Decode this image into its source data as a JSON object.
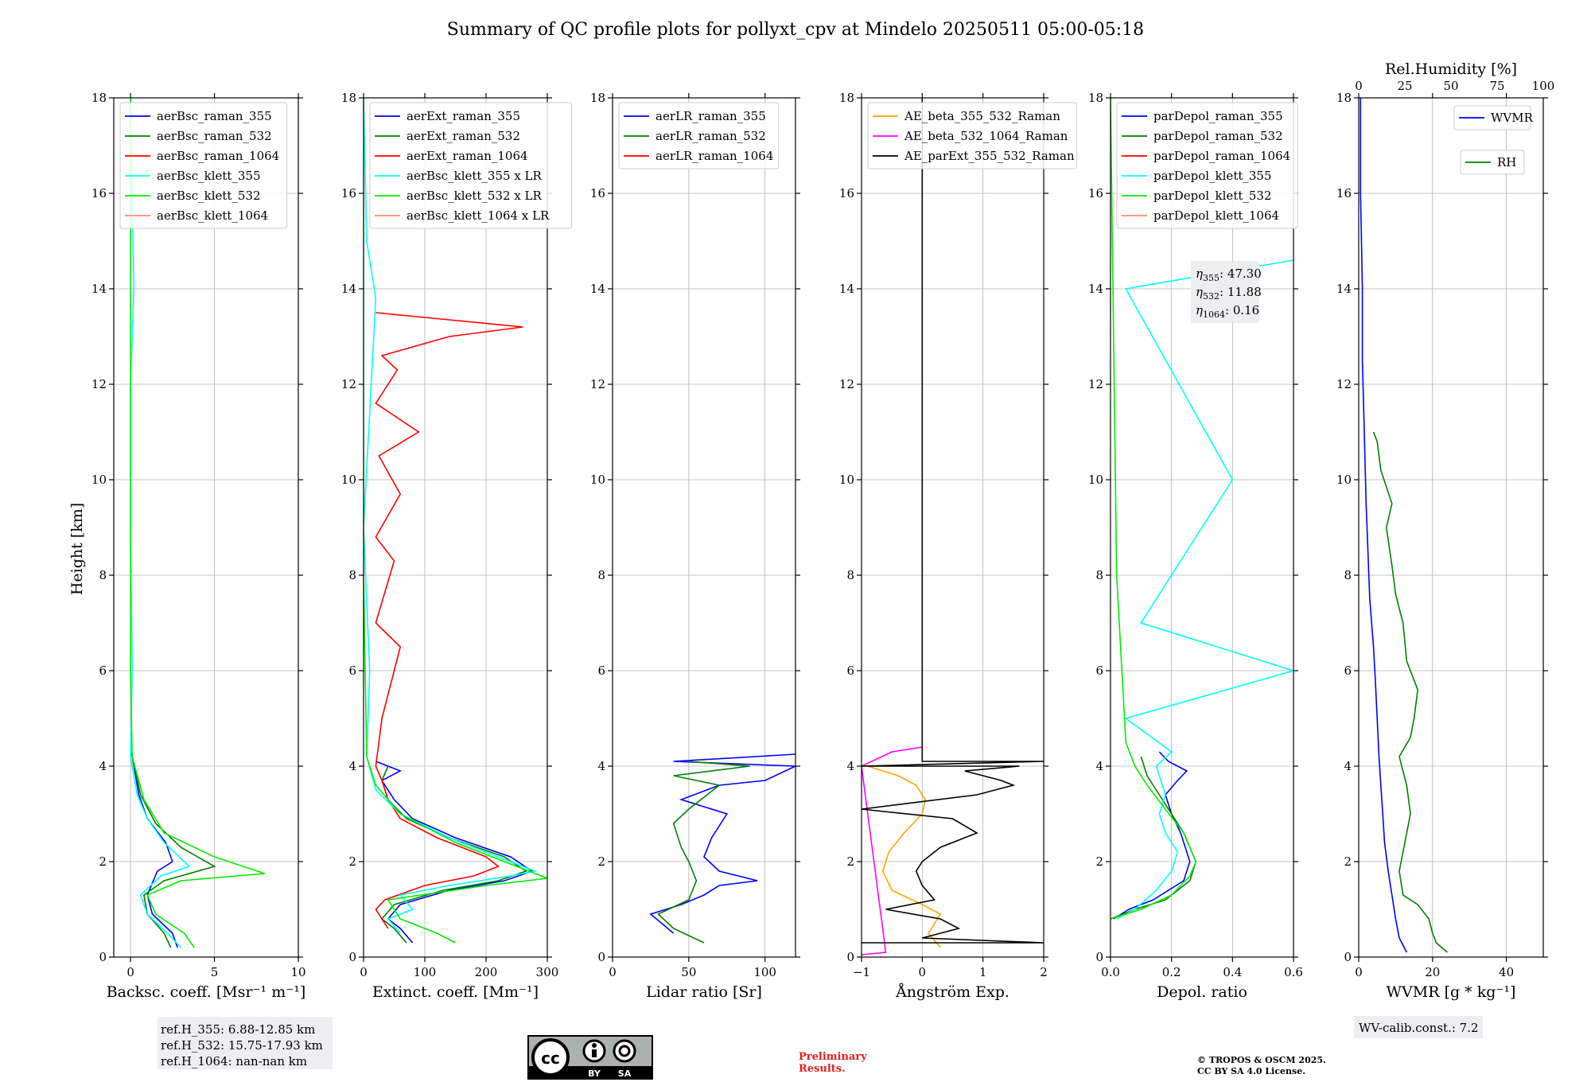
{
  "title": "Summary of QC profile plots for pollyxt_cpv at Mindelo 20250511 05:00-05:18",
  "shared_ylabel": "Height [km]",
  "panels": [
    {
      "xlabel": "Backsc. coeff. [Msr⁻¹ m⁻¹]",
      "xlim": [
        -1,
        10
      ],
      "xticks": [
        0,
        5,
        10
      ],
      "ylim": [
        0,
        18
      ],
      "yticks": [
        0,
        2,
        4,
        6,
        8,
        10,
        12,
        14,
        16,
        18
      ],
      "legend": [
        "aerBsc_raman_355",
        "aerBsc_raman_532",
        "aerBsc_raman_1064",
        "aerBsc_klett_355",
        "aerBsc_klett_532",
        "aerBsc_klett_1064"
      ],
      "colors": [
        "#0000ff",
        "#008000",
        "#ff0000",
        "#00ffff",
        "#00ee00",
        "#ff8c69"
      ]
    },
    {
      "xlabel": "Extinct. coeff. [Mm⁻¹]",
      "xlim": [
        0,
        300
      ],
      "xticks": [
        0,
        100,
        200,
        300
      ],
      "ylim": [
        0,
        18
      ],
      "yticks": [
        0,
        2,
        4,
        6,
        8,
        10,
        12,
        14,
        16,
        18
      ],
      "legend": [
        "aerExt_raman_355",
        "aerExt_raman_532",
        "aerExt_raman_1064",
        "aerBsc_klett_355 x LR",
        "aerBsc_klett_532 x LR",
        "aerBsc_klett_1064 x LR"
      ],
      "colors": [
        "#0000ff",
        "#008000",
        "#ff0000",
        "#00ffff",
        "#00ee00",
        "#ff8c69"
      ]
    },
    {
      "xlabel": "Lidar ratio [Sr]",
      "xlim": [
        0,
        120
      ],
      "xticks": [
        0,
        50,
        100
      ],
      "ylim": [
        0,
        18
      ],
      "yticks": [
        0,
        2,
        4,
        6,
        8,
        10,
        12,
        14,
        16,
        18
      ],
      "legend": [
        "aerLR_raman_355",
        "aerLR_raman_532",
        "aerLR_raman_1064"
      ],
      "colors": [
        "#0000ff",
        "#008000",
        "#ff0000"
      ]
    },
    {
      "xlabel": "Ångström Exp.",
      "xlim": [
        -1,
        2
      ],
      "xticks": [
        -1,
        0,
        1,
        2
      ],
      "ylim": [
        0,
        18
      ],
      "yticks": [
        0,
        2,
        4,
        6,
        8,
        10,
        12,
        14,
        16,
        18
      ],
      "legend": [
        "AE_beta_355_532_Raman",
        "AE_beta_532_1064_Raman",
        "AE_parExt_355_532_Raman"
      ],
      "colors": [
        "#ffa500",
        "#ff00ff",
        "#000000"
      ]
    },
    {
      "xlabel": "Depol. ratio",
      "xlim": [
        0,
        0.6
      ],
      "xticks": [
        0.0,
        0.2,
        0.4,
        0.6
      ],
      "ylim": [
        0,
        18
      ],
      "yticks": [
        0,
        2,
        4,
        6,
        8,
        10,
        12,
        14,
        16,
        18
      ],
      "legend": [
        "parDepol_raman_355",
        "parDepol_raman_532",
        "parDepol_raman_1064",
        "parDepol_klett_355",
        "parDepol_klett_532",
        "parDepol_klett_1064"
      ],
      "colors": [
        "#0000ff",
        "#008000",
        "#ff0000",
        "#00ffff",
        "#00ee00",
        "#ff8c69"
      ],
      "eta": [
        "47.30",
        "11.88",
        "0.16"
      ]
    },
    {
      "xlabel": "WVMR [g * kg⁻¹]",
      "xlim": [
        0,
        50
      ],
      "xticks": [
        0,
        20,
        40
      ],
      "ylim": [
        0,
        18
      ],
      "yticks": [
        0,
        2,
        4,
        6,
        8,
        10,
        12,
        14,
        16,
        18
      ],
      "top_xlabel": "Rel.Humidity [%]",
      "top_xticks": [
        0,
        25,
        50,
        75,
        100
      ],
      "legend": [
        "WVMR",
        "RH"
      ],
      "colors": [
        "#0000ff",
        "#008000"
      ]
    }
  ],
  "refh": [
    "ref.H_355: 6.88-12.85 km",
    "ref.H_532: 15.75-17.93 km",
    "ref.H_1064: nan-nan km"
  ],
  "wv_calib": "WV-calib.const.: 7.2",
  "cc_badge": {
    "by": "BY",
    "sa": "SA"
  },
  "preliminary": [
    "Preliminary",
    "Results."
  ],
  "copyright": [
    "© TROPOS & OSCM 2025.",
    "CC BY SA 4.0 License."
  ],
  "chart_data": [
    {
      "type": "line",
      "xlabel": "Backsc. coeff. [Msr⁻¹ m⁻¹]",
      "ylabel": "Height [km]",
      "xlim": [
        -1,
        10
      ],
      "ylim": [
        0,
        18
      ],
      "grid": true,
      "legend_position": "top",
      "series": [
        {
          "name": "aerBsc_raman_355",
          "x": [
            2.8,
            2.5,
            1.3,
            1.0,
            1.6,
            2.5,
            2.1,
            1.0,
            0.5,
            0.1,
            0.0
          ],
          "y": [
            0.2,
            0.5,
            0.9,
            1.3,
            1.8,
            2.0,
            2.4,
            2.9,
            3.4,
            4.2,
            4.3
          ]
        },
        {
          "name": "aerBsc_raman_532",
          "x": [
            2.4,
            2.0,
            1.0,
            0.8,
            2.0,
            5.0,
            3.0,
            1.5,
            0.6,
            0.1
          ],
          "y": [
            0.2,
            0.5,
            0.9,
            1.3,
            1.6,
            1.9,
            2.3,
            2.8,
            3.4,
            4.2
          ]
        },
        {
          "name": "aerBsc_klett_355",
          "x": [
            3.0,
            2.2,
            1.0,
            0.6,
            1.8,
            3.5,
            2.0,
            1.0,
            0.4,
            0.0,
            0.1,
            0.0,
            0.0,
            0.2,
            0.0
          ],
          "y": [
            0.2,
            0.5,
            0.9,
            1.3,
            1.7,
            1.9,
            2.4,
            2.9,
            3.4,
            4.2,
            6.0,
            9.0,
            12.0,
            14.0,
            18.0
          ]
        },
        {
          "name": "aerBsc_klett_532",
          "x": [
            3.8,
            3.2,
            1.5,
            1.0,
            3.0,
            8.0,
            5.0,
            2.0,
            0.8,
            0.1,
            0.0,
            0.0,
            0.0,
            0.0
          ],
          "y": [
            0.2,
            0.5,
            0.9,
            1.3,
            1.6,
            1.75,
            2.1,
            2.6,
            3.3,
            4.2,
            6.0,
            10.0,
            14.0,
            18.0
          ]
        }
      ]
    },
    {
      "type": "line",
      "xlabel": "Extinct. coeff. [Mm⁻¹]",
      "ylabel": "Height [km]",
      "xlim": [
        0,
        300
      ],
      "ylim": [
        0,
        18
      ],
      "grid": true,
      "legend_position": "top",
      "series": [
        {
          "name": "aerExt_raman_355",
          "x": [
            80,
            60,
            40,
            60,
            140,
            230,
            275,
            240,
            150,
            80,
            50,
            30,
            60,
            20
          ],
          "y": [
            0.3,
            0.6,
            0.8,
            1.1,
            1.4,
            1.6,
            1.8,
            2.1,
            2.5,
            2.9,
            3.3,
            3.7,
            3.9,
            4.1
          ]
        },
        {
          "name": "aerExt_raman_532",
          "x": [
            70,
            50,
            30,
            50,
            130,
            220,
            265,
            230,
            140,
            70,
            40,
            30,
            40
          ],
          "y": [
            0.3,
            0.6,
            0.8,
            1.1,
            1.4,
            1.6,
            1.8,
            2.1,
            2.5,
            2.9,
            3.3,
            3.7,
            4.0
          ]
        },
        {
          "name": "aerExt_raman_1064",
          "x": [
            40,
            30,
            20,
            35,
            100,
            180,
            220,
            200,
            120,
            60,
            40,
            30,
            20,
            30,
            60,
            20,
            50,
            20,
            60,
            25,
            90,
            20,
            55,
            30,
            140,
            260,
            100,
            20
          ],
          "y": [
            0.6,
            0.8,
            1.0,
            1.2,
            1.5,
            1.7,
            1.9,
            2.1,
            2.5,
            2.9,
            3.3,
            3.7,
            4.0,
            5.0,
            6.5,
            7.0,
            8.3,
            8.8,
            9.7,
            10.5,
            11.0,
            11.6,
            12.3,
            12.6,
            13.0,
            13.2,
            13.4,
            13.5
          ]
        },
        {
          "name": "aerBsc_klett_355 x LR",
          "x": [
            60,
            40,
            80,
            60,
            140,
            240,
            280,
            240,
            140,
            60,
            20,
            5,
            10,
            0,
            20,
            5,
            0
          ],
          "y": [
            0.5,
            0.8,
            1.0,
            1.3,
            1.5,
            1.7,
            1.8,
            2.0,
            2.5,
            3.0,
            3.5,
            4.2,
            6.0,
            9.0,
            13.8,
            15.0,
            18.0
          ]
        },
        {
          "name": "aerBsc_klett_532 x LR",
          "x": [
            150,
            120,
            60,
            40,
            200,
            300,
            250,
            150,
            60,
            20,
            5,
            0,
            0
          ],
          "y": [
            0.3,
            0.5,
            0.8,
            1.2,
            1.5,
            1.65,
            1.9,
            2.4,
            3.0,
            3.6,
            4.2,
            8.0,
            18.0
          ]
        }
      ]
    },
    {
      "type": "line",
      "xlabel": "Lidar ratio [Sr]",
      "ylabel": "Height [km]",
      "xlim": [
        0,
        120
      ],
      "ylim": [
        0,
        18
      ],
      "grid": true,
      "legend_position": "top",
      "series": [
        {
          "name": "aerLR_raman_355",
          "x": [
            40,
            25,
            45,
            60,
            70,
            95,
            70,
            60,
            65,
            75,
            45,
            70,
            100,
            120,
            40,
            120
          ],
          "y": [
            0.5,
            0.9,
            1.1,
            1.3,
            1.5,
            1.6,
            1.8,
            2.1,
            2.5,
            3.0,
            3.3,
            3.6,
            3.7,
            4.0,
            4.1,
            4.25
          ]
        },
        {
          "name": "aerLR_raman_532",
          "x": [
            60,
            40,
            30,
            50,
            55,
            50,
            45,
            40,
            50,
            70,
            40,
            90,
            50
          ],
          "y": [
            0.3,
            0.6,
            0.9,
            1.2,
            1.6,
            2.0,
            2.3,
            2.8,
            3.1,
            3.6,
            3.8,
            4.0,
            4.1
          ]
        }
      ]
    },
    {
      "type": "line",
      "xlabel": "Ångström Exp.",
      "ylabel": "Height [km]",
      "xlim": [
        -1,
        2
      ],
      "ylim": [
        0,
        18
      ],
      "grid": true,
      "legend_position": "top",
      "series": [
        {
          "name": "AE_beta_355_532_Raman",
          "x": [
            0.3,
            0.1,
            0.3,
            0.0,
            -0.5,
            -0.65,
            -0.55,
            -0.3,
            0.0,
            0.05,
            -0.1,
            -0.4,
            -0.9
          ],
          "y": [
            0.2,
            0.5,
            0.9,
            1.1,
            1.4,
            1.8,
            2.2,
            2.6,
            3.0,
            3.3,
            3.6,
            3.8,
            4.0
          ]
        },
        {
          "name": "AE_beta_532_1064_Raman",
          "x": [
            -1.0,
            -0.6,
            -1.0,
            -0.5,
            0.0
          ],
          "y": [
            0.05,
            0.1,
            4.0,
            4.3,
            4.4
          ]
        },
        {
          "name": "AE_parExt_355_532_Raman",
          "x": [
            -1.0,
            2.0,
            0.0,
            0.6,
            0.3,
            -0.6,
            0.2,
            0.0,
            -0.1,
            0.0,
            0.3,
            0.9,
            0.5,
            -1.0,
            0.9,
            1.5,
            1.3,
            0.7,
            1.6,
            -1.0,
            2.0,
            0.0,
            0.0
          ],
          "y": [
            0.3,
            0.3,
            0.4,
            0.6,
            0.8,
            1.0,
            1.2,
            1.5,
            1.8,
            2.0,
            2.3,
            2.6,
            2.9,
            3.1,
            3.4,
            3.6,
            3.7,
            3.9,
            4.0,
            4.0,
            4.1,
            4.1,
            18.0
          ]
        }
      ]
    },
    {
      "type": "line",
      "xlabel": "Depol. ratio",
      "ylabel": "Height [km]",
      "xlim": [
        0,
        0.6
      ],
      "ylim": [
        0,
        18
      ],
      "grid": true,
      "legend_position": "top-left",
      "annotation": "η355: 47.30, η532: 11.88, η1064: 0.16",
      "series": [
        {
          "name": "parDepol_raman_355",
          "x": [
            0.01,
            0.06,
            0.14,
            0.24,
            0.26,
            0.23,
            0.2,
            0.18,
            0.22,
            0.25,
            0.19,
            0.16
          ],
          "y": [
            0.8,
            1.0,
            1.2,
            1.6,
            2.0,
            2.6,
            3.0,
            3.4,
            3.7,
            3.9,
            4.1,
            4.3
          ]
        },
        {
          "name": "parDepol_raman_532",
          "x": [
            0.0,
            0.08,
            0.18,
            0.26,
            0.28,
            0.24,
            0.2,
            0.16,
            0.12,
            0.1
          ],
          "y": [
            0.8,
            1.0,
            1.2,
            1.6,
            2.0,
            2.6,
            3.0,
            3.4,
            3.8,
            4.2
          ]
        },
        {
          "name": "parDepol_klett_355",
          "x": [
            0.02,
            0.08,
            0.15,
            0.2,
            0.22,
            0.18,
            0.16,
            0.18,
            0.15,
            0.2,
            0.05,
            0.6,
            0.1,
            0.4,
            0.05,
            0.6
          ],
          "y": [
            0.8,
            1.0,
            1.4,
            1.8,
            2.2,
            2.6,
            3.0,
            3.4,
            4.0,
            4.3,
            5.0,
            6.0,
            7.0,
            10.0,
            14.0,
            14.6
          ]
        },
        {
          "name": "parDepol_klett_532",
          "x": [
            0.0,
            0.1,
            0.2,
            0.26,
            0.28,
            0.24,
            0.18,
            0.12,
            0.08,
            0.05,
            0.02,
            0.0
          ],
          "y": [
            0.8,
            1.0,
            1.3,
            1.7,
            2.0,
            2.6,
            3.1,
            3.6,
            4.0,
            4.5,
            8.0,
            18.0
          ]
        }
      ]
    },
    {
      "type": "line",
      "xlabel": "WVMR [g * kg⁻¹]",
      "ylabel": "Height [km]",
      "xlim": [
        0,
        50
      ],
      "ylim": [
        0,
        18
      ],
      "grid": true,
      "legend_position": "top-right",
      "top_xlabel": "Rel.Humidity [%]",
      "top_xlim": [
        0,
        100
      ],
      "series": [
        {
          "name": "WVMR",
          "x": [
            13,
            11,
            10,
            9,
            8,
            7,
            6.5,
            6,
            5.5,
            5,
            4.5,
            4,
            3,
            2.5,
            2,
            1.5,
            1,
            1,
            0.5,
            0.5
          ],
          "y": [
            0.1,
            0.4,
            0.8,
            1.3,
            1.8,
            2.4,
            3.0,
            3.6,
            4.2,
            5.0,
            5.8,
            6.5,
            7.5,
            8.5,
            9.5,
            11.0,
            12.5,
            14.0,
            16.0,
            18.0
          ]
        },
        {
          "name": "RH",
          "x": [
            48,
            42,
            40,
            38,
            32,
            24,
            22,
            25,
            28,
            26,
            22,
            28,
            30,
            32,
            26,
            24,
            20,
            18,
            15,
            18,
            12,
            10,
            8
          ],
          "y": [
            0.1,
            0.3,
            0.5,
            0.8,
            1.1,
            1.3,
            1.8,
            2.4,
            3.0,
            3.6,
            4.2,
            4.6,
            5.0,
            5.6,
            6.2,
            7.0,
            7.6,
            8.2,
            9.0,
            9.5,
            10.2,
            10.8,
            11.0
          ]
        }
      ]
    }
  ]
}
